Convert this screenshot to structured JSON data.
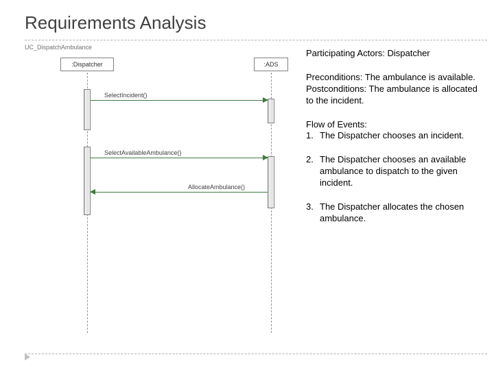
{
  "title": "Requirements Analysis",
  "uc_label": "UC_DispatchAmbulance",
  "diagram": {
    "type": "sequence",
    "background_color": "#ffffff",
    "line_color": "#808080",
    "arrow_color": "#3d7a3d",
    "lifelines": {
      "dispatcher": {
        "label": ":Dispatcher"
      },
      "ads": {
        "label": ":ADS"
      }
    },
    "messages": {
      "m1": {
        "label": "SelectIncident()",
        "from": "dispatcher",
        "to": "ads",
        "direction": "right"
      },
      "m2": {
        "label": "SelectAvailableAmbulance()",
        "from": "dispatcher",
        "to": "ads",
        "direction": "right"
      },
      "m3": {
        "label": "AllocateAmbulance()",
        "from": "ads",
        "to": "dispatcher",
        "direction": "left"
      }
    }
  },
  "text": {
    "actors_label": "Participating Actors: Dispatcher",
    "preconditions": "Preconditions: The ambulance is available.",
    "postconditions": "Postconditions: The ambulance is allocated to the incident.",
    "flow_heading": "Flow of Events:",
    "flow": [
      "The Dispatcher chooses an incident.",
      "The Dispatcher chooses an available ambulance to dispatch to the given incident.",
      "The Dispatcher allocates the chosen ambulance."
    ]
  },
  "style": {
    "title_fontsize": 26,
    "title_color": "#404040",
    "body_fontsize": 13,
    "body_color": "#000000",
    "diagram_label_fontsize": 9,
    "dashed_color": "#b0b0b0"
  }
}
